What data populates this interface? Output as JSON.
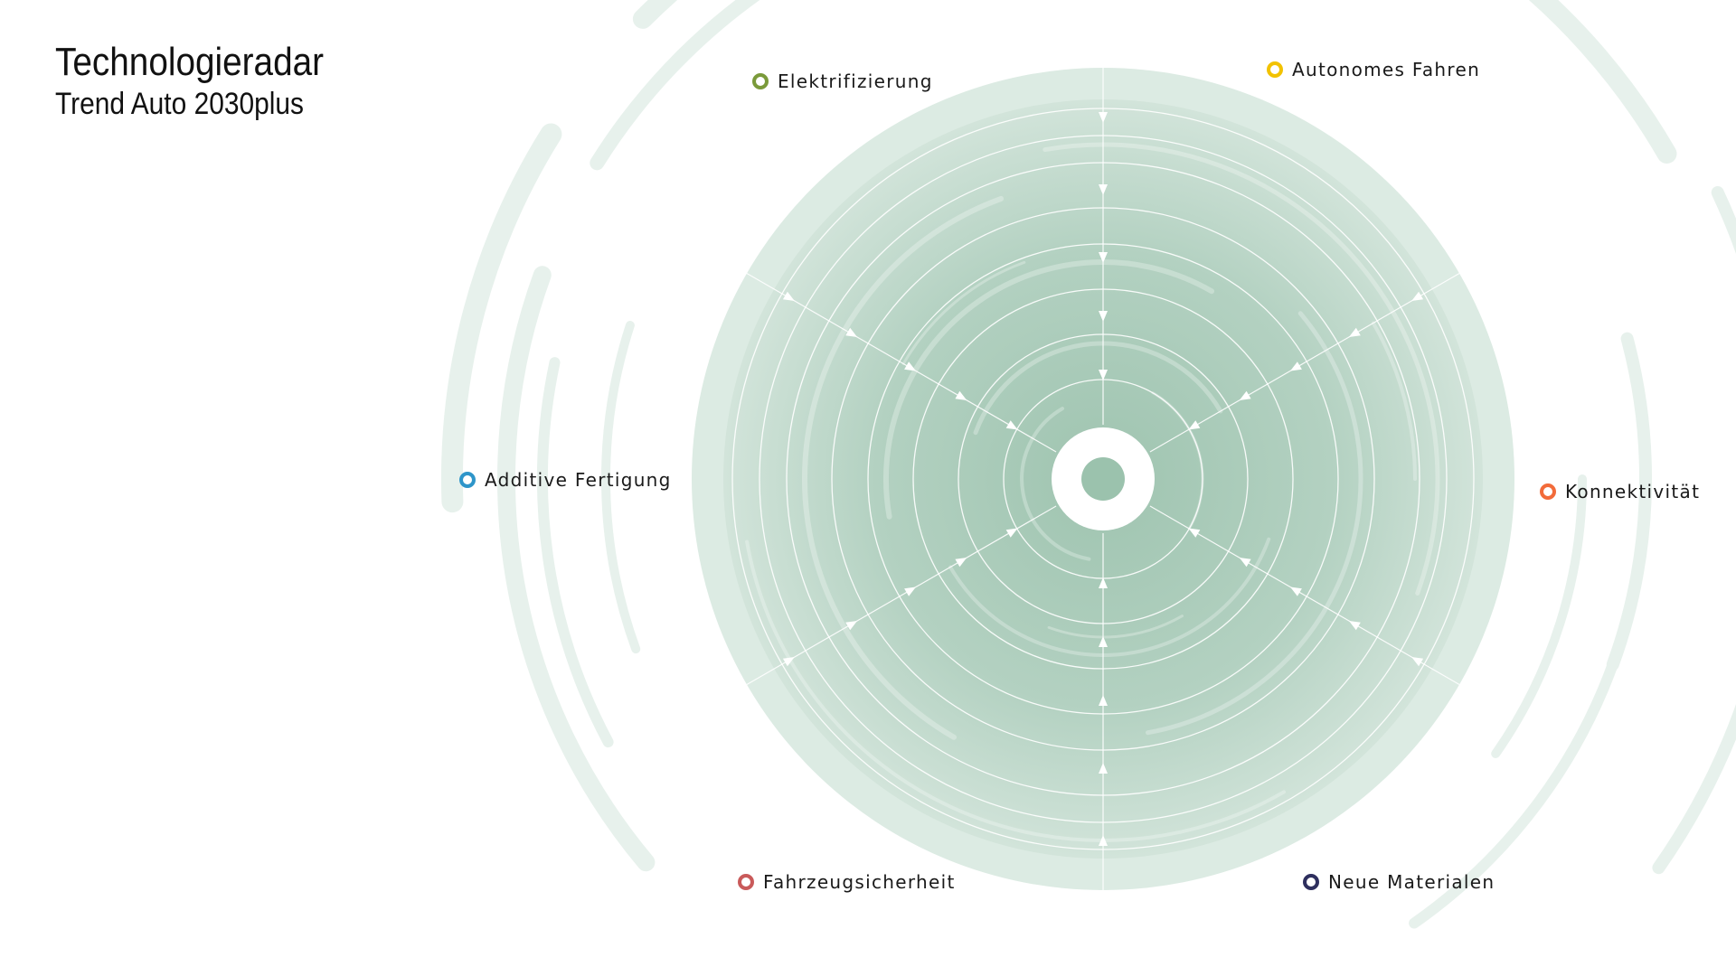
{
  "header": {
    "title": "Technologieradar",
    "subtitle": "Trend Auto 2030plus"
  },
  "categories": [
    {
      "label": "Elektrifizierung",
      "color": "#7a9a3a"
    },
    {
      "label": "Autonomes Fahren",
      "color": "#f2c200"
    },
    {
      "label": "Konnektivität",
      "color": "#f26b3a"
    },
    {
      "label": "Neue Materialen",
      "color": "#2e2f5e"
    },
    {
      "label": "Fahrzeugsicherheit",
      "color": "#c95a5a"
    },
    {
      "label": "Additive Fertigung",
      "color": "#2e95c9"
    }
  ],
  "colors": {
    "background": "#ffffff",
    "radar_fill": "#9fc4b0",
    "ring_line": "#ffffff",
    "center_dot": "#9bc2ad",
    "outer_swirl": "#e7f1ec"
  }
}
